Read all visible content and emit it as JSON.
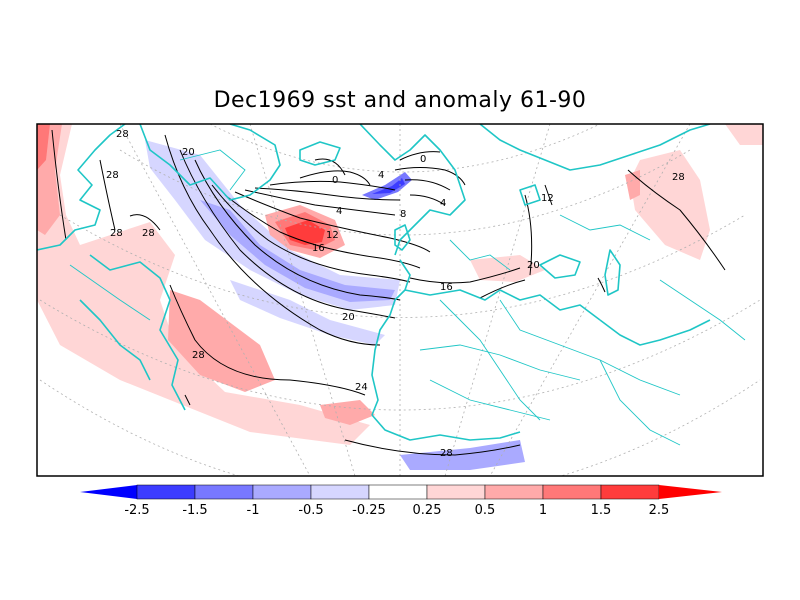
{
  "title": "Dec1969 sst and anomaly 61-90",
  "colors": {
    "coast": "#1fc6c6",
    "contour": "#000000",
    "grid": "#b0b0b0",
    "neg": [
      "#0000ff",
      "#3c3cff",
      "#7878ff",
      "#aaaaff",
      "#d6d6ff"
    ],
    "pos": [
      "#ffd6d6",
      "#ffaaaa",
      "#ff7878",
      "#ff3c3c",
      "#ff0000"
    ]
  },
  "legend": {
    "ticks": [
      "-2.5",
      "-1.5",
      "-1",
      "-0.5",
      "-0.25",
      "0.25",
      "0.5",
      "1",
      "1.5",
      "2.5"
    ]
  },
  "contours": {
    "labels": [
      "28",
      "28",
      "28",
      "28",
      "20",
      "0",
      "4",
      "8",
      "12",
      "16",
      "16",
      "20",
      "24",
      "28",
      "28",
      "0",
      "4",
      "4",
      "12",
      "20"
    ]
  }
}
